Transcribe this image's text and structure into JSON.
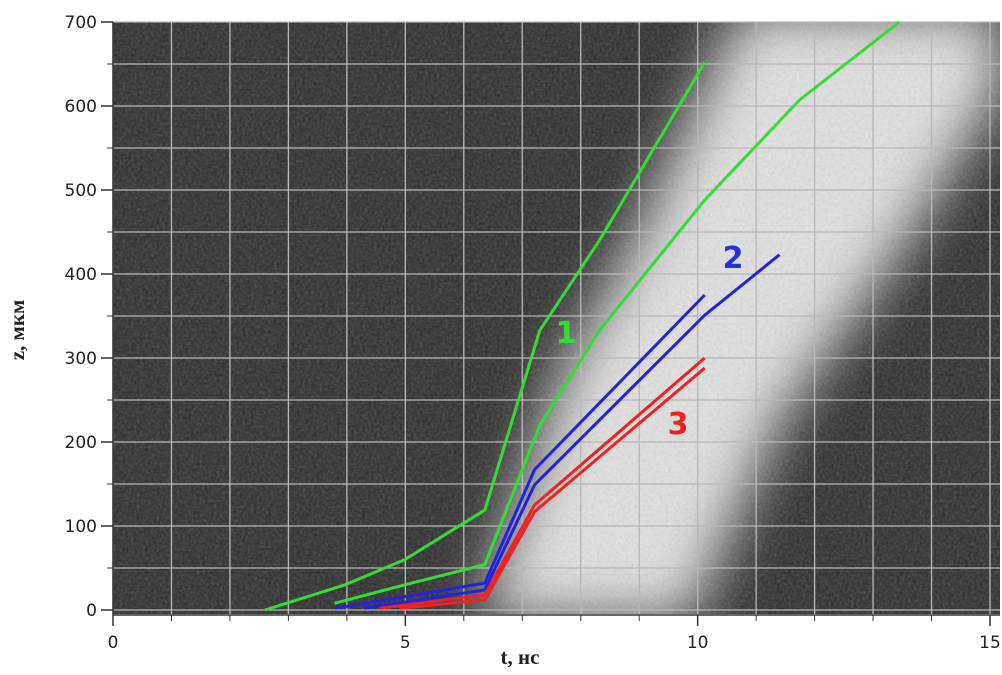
{
  "chart_data": {
    "type": "line",
    "x_label": "t, нс",
    "y_label": "z,  мкм",
    "xlim": [
      0,
      15
    ],
    "ylim": [
      0,
      700
    ],
    "xticks": [
      0,
      5,
      10,
      15
    ],
    "yticks": [
      0,
      100,
      200,
      300,
      400,
      500,
      600,
      700
    ],
    "xgrid": [
      0,
      1,
      2,
      3,
      4,
      5,
      6,
      7,
      8,
      9,
      10,
      11,
      12,
      13,
      14,
      15
    ],
    "ygrid": [
      0,
      50,
      100,
      150,
      200,
      250,
      300,
      350,
      400,
      450,
      500,
      550,
      600,
      650,
      700
    ],
    "grid": true,
    "grid_color": "#b8b8b8",
    "series": [
      {
        "color": "#33dd33",
        "x": [
          2.6,
          3.97,
          4.99,
          6.36,
          7.3,
          8.32,
          10.12
        ],
        "values": [
          0,
          30,
          60,
          119,
          333,
          440,
          652
        ]
      },
      {
        "color": "#33dd33",
        "x": [
          3.79,
          4.99,
          6.36,
          7.3,
          8.32,
          10.12,
          11.74,
          13.45
        ],
        "values": [
          8,
          30,
          54,
          220,
          333,
          488,
          607,
          700
        ]
      },
      {
        "color": "#2222dd",
        "x": [
          3.8,
          6.36,
          7.21,
          10.12
        ],
        "values": [
          2,
          32,
          167,
          375
        ]
      },
      {
        "color": "#2222dd",
        "x": [
          4.3,
          6.36,
          7.21,
          10.12,
          11.4
        ],
        "values": [
          2,
          24,
          149,
          351,
          423
        ]
      },
      {
        "color": "#ee2222",
        "x": [
          4.56,
          6.36,
          7.21,
          10.12
        ],
        "values": [
          2,
          18,
          125,
          300
        ]
      },
      {
        "color": "#ee2222",
        "x": [
          4.9,
          6.36,
          7.21,
          10.12
        ],
        "values": [
          2,
          12,
          117,
          288
        ]
      }
    ],
    "annotations": [
      {
        "text": "1",
        "color": "#33dd33"
      },
      {
        "text": "2",
        "color": "#2233dd"
      },
      {
        "text": "3",
        "color": "#ee2222"
      }
    ]
  }
}
